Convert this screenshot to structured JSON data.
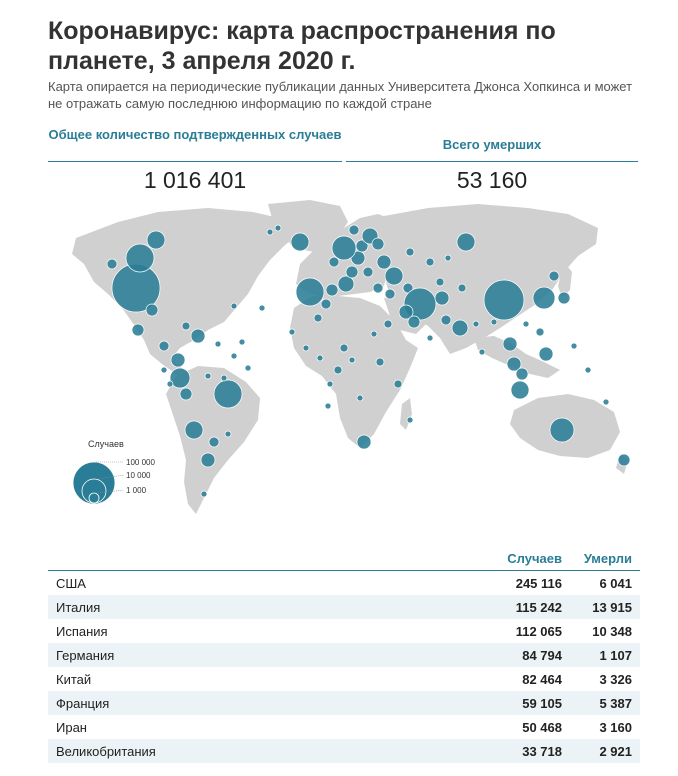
{
  "header": {
    "title": "Коронавирус: карта распространения по планете, 3 апреля 2020 г.",
    "subtitle": "Карта опирается на периодические публикации данных Университета Джонса Хопкинса и может не отражать самую последнюю информацию по каждой стране"
  },
  "stats": {
    "confirmed_label": "Общее количество подтвержденных случаев",
    "confirmed_value": "1 016 401",
    "deaths_label": "Всего умерших",
    "deaths_value": "53 160"
  },
  "legend": {
    "title": "Случаев",
    "items": [
      "100 000",
      "10 000",
      "1 000"
    ]
  },
  "colors": {
    "accent": "#2a7d96",
    "land": "#d0d0d0",
    "row_alt": "#ecf3f6"
  },
  "table": {
    "headers": {
      "cases": "Случаев",
      "deaths": "Умерли"
    },
    "rows": [
      {
        "country": "США",
        "cases": "245 116",
        "deaths": "6 041"
      },
      {
        "country": "Италия",
        "cases": "115 242",
        "deaths": "13 915"
      },
      {
        "country": "Испания",
        "cases": "112 065",
        "deaths": "10 348"
      },
      {
        "country": "Германия",
        "cases": "84 794",
        "deaths": "1 107"
      },
      {
        "country": "Китай",
        "cases": "82 464",
        "deaths": "3 326"
      },
      {
        "country": "Франция",
        "cases": "59 105",
        "deaths": "5 387"
      },
      {
        "country": "Иран",
        "cases": "50 468",
        "deaths": "3 160"
      },
      {
        "country": "Великобритания",
        "cases": "33 718",
        "deaths": "2 921"
      }
    ]
  }
}
